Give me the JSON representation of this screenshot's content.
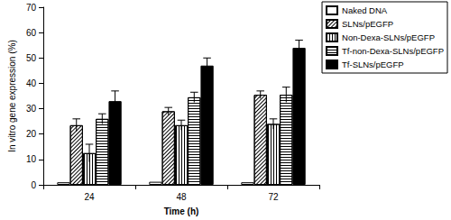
{
  "chart_data": {
    "type": "bar",
    "x_label": "Time (h)",
    "y_label": "In vitro gene expression (%)",
    "categories": [
      "24",
      "48",
      "72"
    ],
    "series": [
      {
        "name": "Naked DNA",
        "color": "#ffffff",
        "values": [
          1,
          1.2,
          1
        ],
        "errors": [
          0,
          0,
          0
        ]
      },
      {
        "name": "SLNs/pEGFP",
        "color": "#ffffff",
        "values": [
          23.5,
          29,
          35.5
        ],
        "errors": [
          2.5,
          1.5,
          1.5
        ]
      },
      {
        "name": "Non-Dexa-SLNs/pEGFP",
        "color": "#ffffff",
        "values": [
          12.5,
          23.5,
          24
        ],
        "errors": [
          3.5,
          2,
          2
        ]
      },
      {
        "name": "Tf-non-Dexa-SLNs/pEGFP",
        "color": "#ffffff",
        "values": [
          26,
          34.5,
          35.5
        ],
        "errors": [
          2,
          2,
          3
        ]
      },
      {
        "name": "Tf-SLNs/pEGFP",
        "color": "#000000",
        "values": [
          33,
          47,
          54
        ],
        "errors": [
          4,
          3,
          3
        ]
      }
    ],
    "ylim": [
      0,
      70
    ],
    "yticks": [
      0,
      10,
      20,
      30,
      40,
      50,
      60,
      70
    ],
    "grid": false,
    "legend": "top-right"
  }
}
